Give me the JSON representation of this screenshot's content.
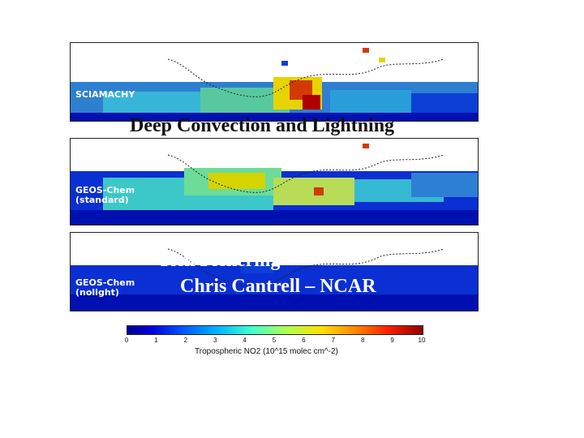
{
  "title_overlay": "Deep Convection and Lightning",
  "credit_line1": "Ken Pickering",
  "credit_line2": "Chris Cantrell – NCAR",
  "panels": [
    {
      "label": "SCIAMACHY"
    },
    {
      "label": "GEOS-Chem\n(standard)"
    },
    {
      "label": "GEOS-Chem\n(nolight)"
    }
  ],
  "colorbar": {
    "ticks": [
      "0",
      "1",
      "2",
      "3",
      "4",
      "5",
      "6",
      "7",
      "8",
      "9",
      "10"
    ],
    "label": "Tropospheric NO2 (10^15 molec cm^-2)"
  },
  "colors": {
    "low": "#0000c8",
    "mid": "#3cc8c8",
    "high": "#e6e600",
    "max": "#a00000",
    "background": "#ffffff"
  }
}
